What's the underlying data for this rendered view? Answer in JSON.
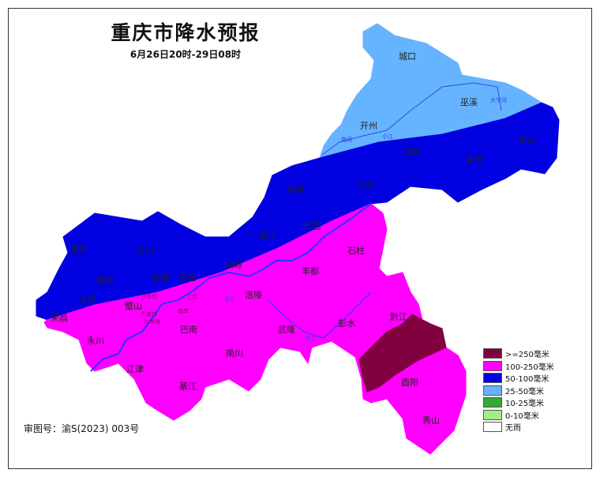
{
  "title": "重庆市降水预报",
  "subtitle": "6月26日20时-29日08时",
  "audit_number": "审图号：渝S(2023) 003号",
  "colors": {
    "ge250": "#800040",
    "r100_250": "#ff00ff",
    "r50_100": "#0000e0",
    "r25_50": "#66b3ff",
    "r10_25": "#33aa33",
    "r0_10": "#a0ee88",
    "none": "#ffffff",
    "river": "#3030ff"
  },
  "legend": [
    {
      "label": ">=250毫米",
      "color": "#800040"
    },
    {
      "label": "100-250毫米",
      "color": "#ff00ff"
    },
    {
      "label": "50-100毫米",
      "color": "#0000e0"
    },
    {
      "label": "25-50毫米",
      "color": "#66b3ff"
    },
    {
      "label": "10-25毫米",
      "color": "#33aa33"
    },
    {
      "label": "0-10毫米",
      "color": "#a0ee88"
    },
    {
      "label": "无雨",
      "color": "#ffffff"
    }
  ],
  "counties": [
    "城口",
    "巫溪",
    "开州",
    "巫山",
    "云阳",
    "奉节",
    "梁平",
    "万州",
    "垫江",
    "忠县",
    "潼南",
    "合川",
    "铜梁",
    "北碚",
    "渝北",
    "大足",
    "荣昌",
    "长寿",
    "石柱",
    "丰都",
    "涪陵",
    "璧山",
    "巴南",
    "永川",
    "武隆",
    "彭水",
    "黔江",
    "南川",
    "江津",
    "綦江",
    "酉阳",
    "秀山"
  ],
  "districts_small": [
    "沙坪坝",
    "江北",
    "南岸",
    "大渡口",
    "九龙坡"
  ],
  "rivers": [
    "长江",
    "乌江",
    "南河",
    "小江",
    "大宁河"
  ]
}
